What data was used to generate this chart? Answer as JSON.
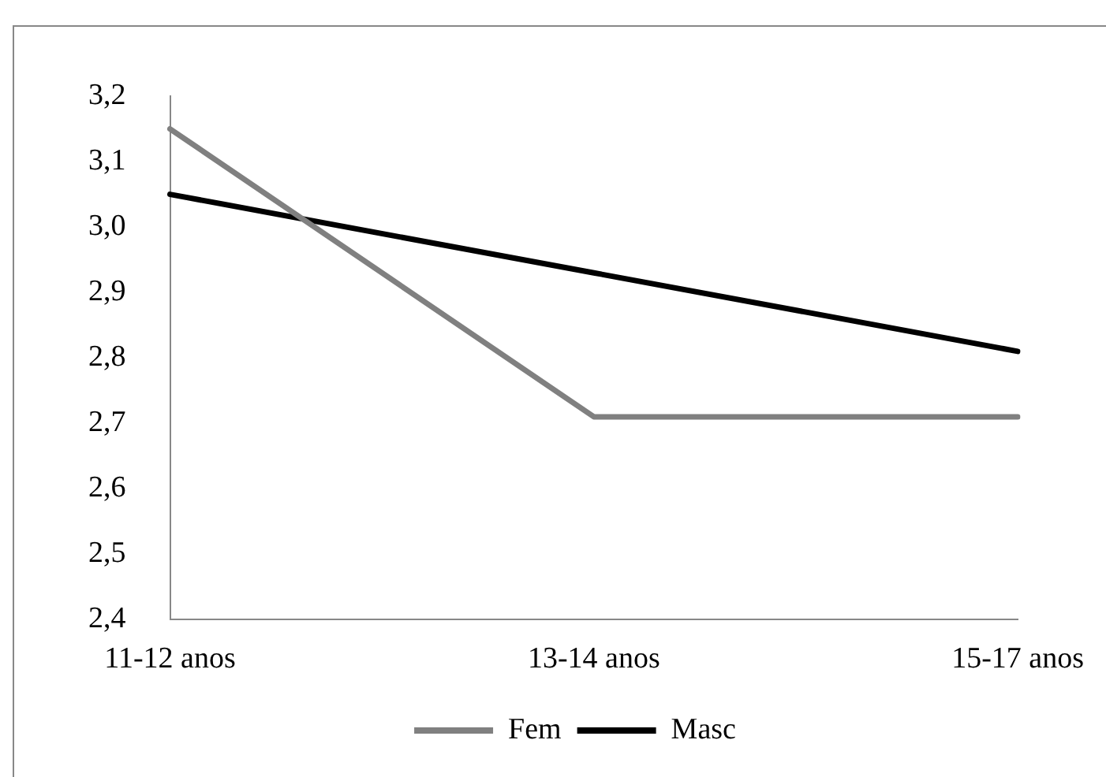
{
  "chart_data": {
    "type": "line",
    "categories": [
      "11-12 anos",
      "13-14 anos",
      "15-17 anos"
    ],
    "series": [
      {
        "name": "Fem",
        "color": "#808080",
        "values": [
          3.15,
          2.71,
          2.71
        ]
      },
      {
        "name": "Masc",
        "color": "#000000",
        "values": [
          3.05,
          2.93,
          2.81
        ]
      }
    ],
    "ylim": [
      2.4,
      3.2
    ],
    "yticks": [
      {
        "value": 2.4,
        "label": "2,4"
      },
      {
        "value": 2.5,
        "label": "2,5"
      },
      {
        "value": 2.6,
        "label": "2,6"
      },
      {
        "value": 2.7,
        "label": "2,7"
      },
      {
        "value": 2.8,
        "label": "2,8"
      },
      {
        "value": 2.9,
        "label": "2,9"
      },
      {
        "value": 3.0,
        "label": "3,0"
      },
      {
        "value": 3.1,
        "label": "3,1"
      },
      {
        "value": 3.2,
        "label": "3,2"
      }
    ],
    "grid": false,
    "legend": "bottom",
    "marker": "none",
    "line_style": "solid"
  }
}
